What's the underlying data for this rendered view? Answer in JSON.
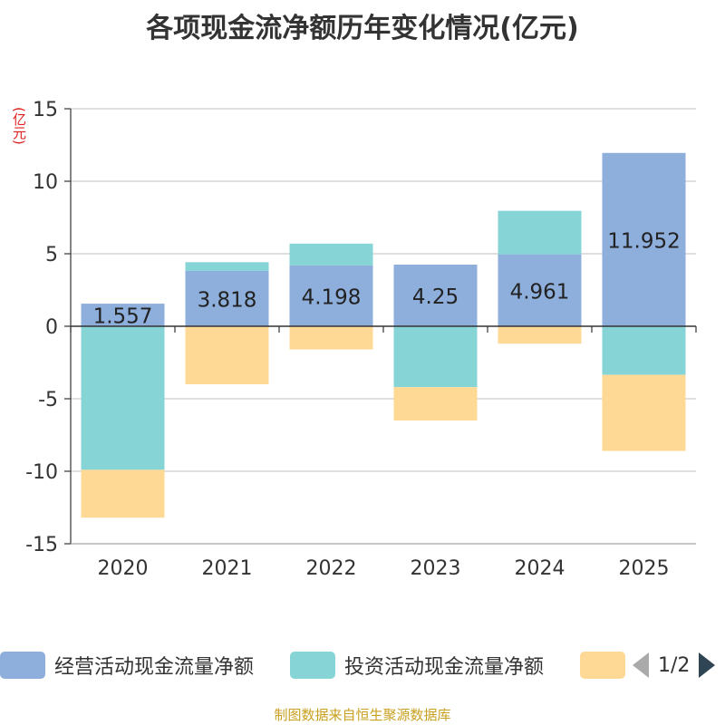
{
  "chart_data": {
    "type": "bar",
    "stacked": true,
    "title": "各项现金流净额历年变化情况(亿元)",
    "ylabel": "(亿元)",
    "xlabel": "",
    "ylim": [
      -15,
      15
    ],
    "yticks": [
      15,
      10,
      5,
      0,
      -5,
      -10,
      -15
    ],
    "ytick_labels": [
      "15",
      "10",
      "5",
      "0",
      "-5",
      "-10",
      "-15"
    ],
    "categories": [
      "2020",
      "2021",
      "2022",
      "2023",
      "2024",
      "2025"
    ],
    "series": [
      {
        "name": "经营活动现金流量净额",
        "color": "#8eaedc",
        "values": [
          1.557,
          3.818,
          4.198,
          4.25,
          4.961,
          11.952
        ],
        "show_labels": true
      },
      {
        "name": "投资活动现金流量净额",
        "color": "#86d4d6",
        "values": [
          -9.9,
          0.6,
          1.5,
          -4.2,
          3.0,
          -3.35
        ],
        "show_labels": false
      },
      {
        "name": "",
        "color": "#fed995",
        "values": [
          -3.3,
          -4.0,
          -1.6,
          -2.3,
          -1.2,
          -5.25
        ],
        "show_labels": false
      }
    ],
    "data_labels": [
      "1.557",
      "3.818",
      "4.198",
      "4.25",
      "4.961",
      "11.952"
    ],
    "legend_position": "bottom",
    "legend_page": "1/2"
  },
  "footer": "制图数据来自恒生聚源数据库"
}
